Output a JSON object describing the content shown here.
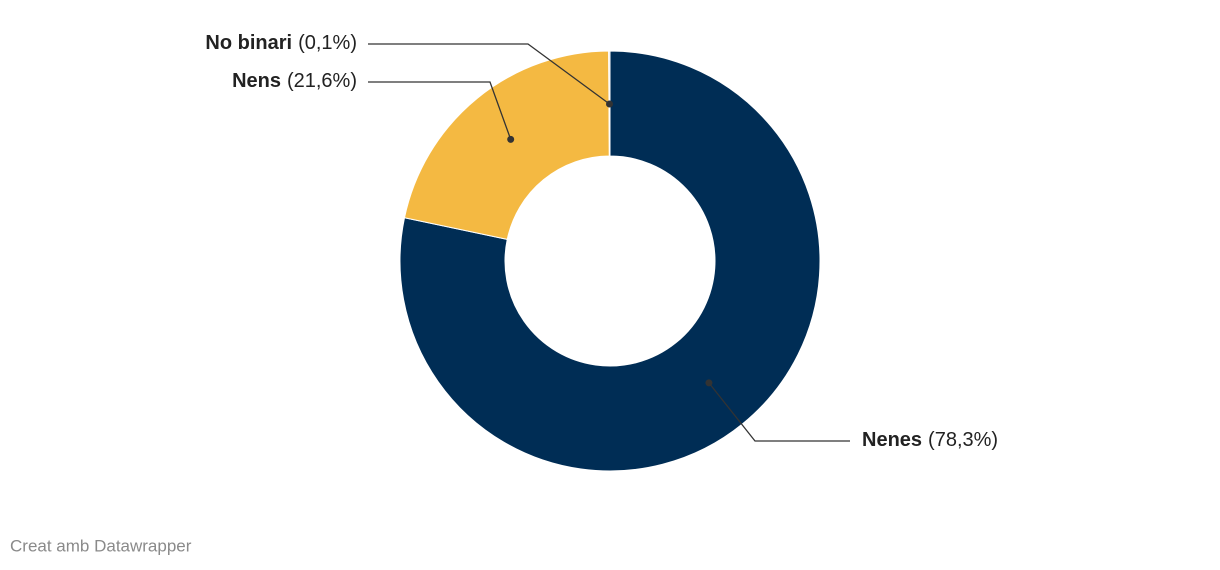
{
  "chart_data": {
    "type": "pie",
    "categories": [
      "Nenes",
      "Nens",
      "No binari"
    ],
    "values": [
      78.3,
      21.6,
      0.1
    ],
    "value_labels": [
      "(78,3%)",
      "(21,6%)",
      "(0,1%)"
    ],
    "colors": [
      "#002d55",
      "#f4b942",
      "#d9d9d9"
    ],
    "credit": "Creat amb Datawrapper"
  }
}
